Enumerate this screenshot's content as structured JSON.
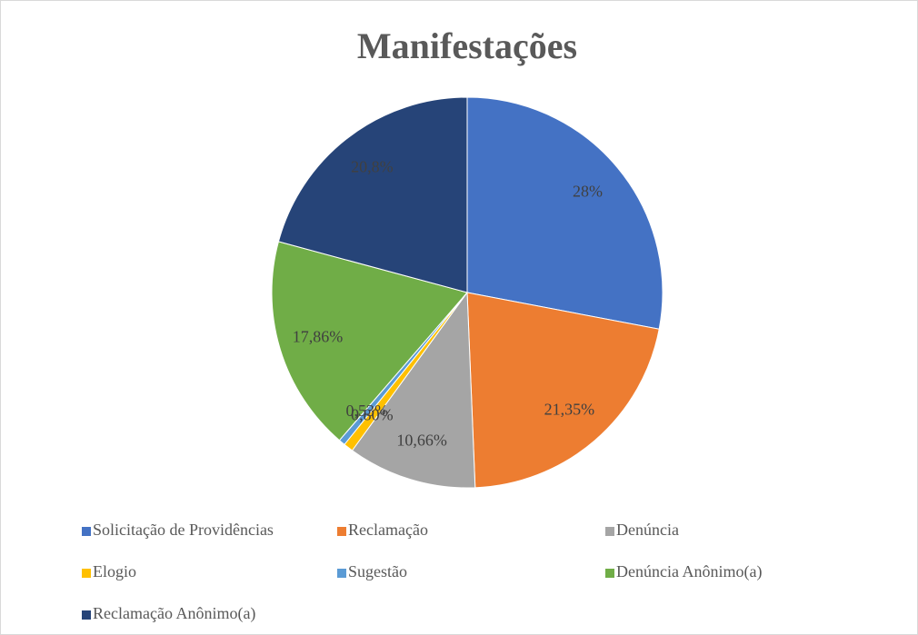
{
  "chart_data": {
    "type": "pie",
    "title": "Manifestações",
    "categories": [
      "Solicitação de Providências",
      "Reclamação",
      "Denúncia",
      "Elogio",
      "Sugestão",
      "Denúncia Anônimo(a)",
      "Reclamação Anônimo(a)"
    ],
    "values": [
      28,
      21.35,
      10.66,
      0.8,
      0.53,
      17.86,
      20.8
    ],
    "value_labels": [
      "28%",
      "21,35%",
      "10,66%",
      "0,80%",
      "0,53%",
      "17,86%",
      "20,8%"
    ],
    "colors": [
      "#4472c4",
      "#ed7d31",
      "#a5a5a5",
      "#ffc000",
      "#5b9bd5",
      "#70ad47",
      "#264478"
    ],
    "legend": "bottom"
  }
}
